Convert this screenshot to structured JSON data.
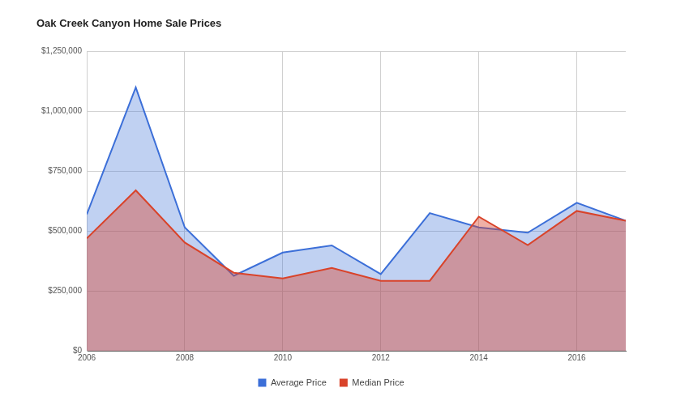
{
  "chart_data": {
    "type": "area",
    "title": "Oak Creek Canyon Home Sale Prices",
    "x": [
      2006,
      2007,
      2008,
      2009,
      2010,
      2011,
      2012,
      2013,
      2014,
      2015,
      2016,
      2017
    ],
    "series": [
      {
        "name": "Average Price",
        "color": "#3c6fd8",
        "values": [
          570000,
          1100000,
          515000,
          313000,
          410000,
          440000,
          320000,
          575000,
          515000,
          493000,
          618000,
          543000
        ]
      },
      {
        "name": "Median Price",
        "color": "#d9432a",
        "values": [
          469000,
          670000,
          452000,
          326000,
          302000,
          346000,
          292000,
          292000,
          560000,
          441000,
          584000,
          543000
        ]
      }
    ],
    "xlim": [
      2006,
      2017
    ],
    "xticks": [
      2006,
      2008,
      2010,
      2012,
      2014,
      2016
    ],
    "ylim": [
      0,
      1250000
    ],
    "yticks": [
      {
        "value": 0,
        "label": "$0"
      },
      {
        "value": 250000,
        "label": "$250,000"
      },
      {
        "value": 500000,
        "label": "$500,000"
      },
      {
        "value": 750000,
        "label": "$750,000"
      },
      {
        "value": 1000000,
        "label": "$1,000,000"
      },
      {
        "value": 1250000,
        "label": "$1,250,000"
      }
    ],
    "grid": true,
    "legend": "bottom"
  }
}
